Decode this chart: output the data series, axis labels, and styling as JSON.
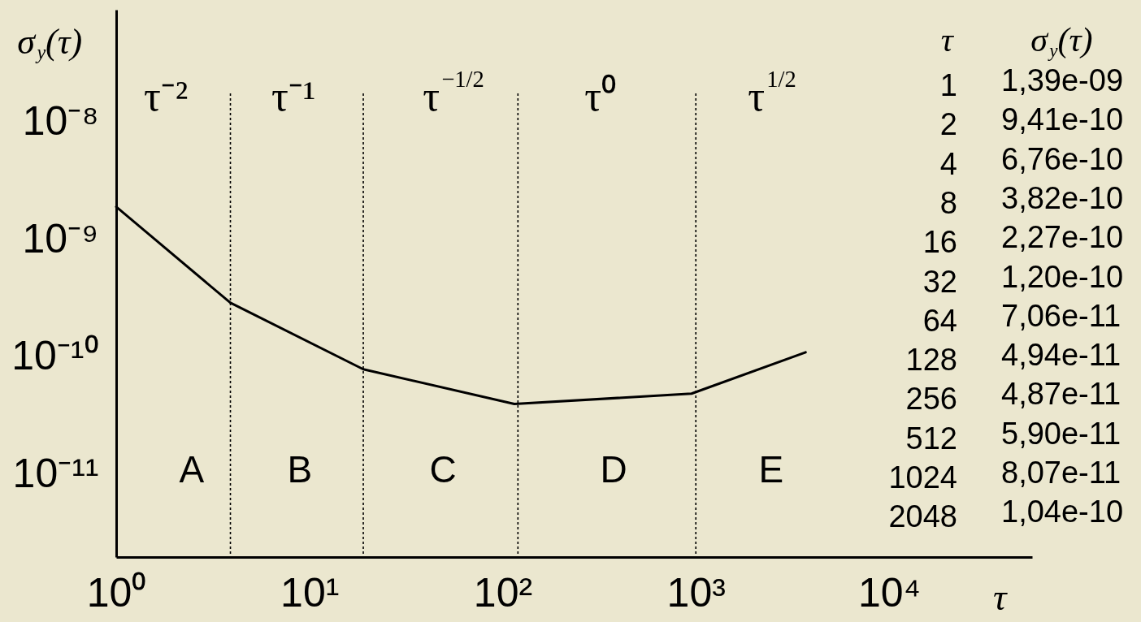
{
  "chart_data": [
    {
      "type": "line",
      "xlabel": "τ",
      "ylabel": "σ$_{y}$(τ)",
      "x": [
        1,
        3.9,
        19,
        115,
        950,
        3700
      ],
      "values": [
        1.9e-09,
        2.9e-10,
        7.9e-11,
        4e-11,
        4.9e-11,
        1.1e-10
      ],
      "color": "#000000",
      "log": "xy",
      "xlim": [
        1,
        55000
      ],
      "xticks": [
        {
          "value": 1,
          "label": "10⁰"
        },
        {
          "value": 10,
          "label": "10¹"
        },
        {
          "value": 100,
          "label": "10²"
        },
        {
          "value": 1000,
          "label": "10³"
        },
        {
          "value": 10000,
          "label": "10⁴"
        }
      ],
      "ylim": [
        2e-12,
        9e-08
      ],
      "yticks": [
        {
          "value": 1e-11,
          "label": "10⁻¹¹"
        },
        {
          "value": 1e-10,
          "label": "10⁻¹⁰"
        },
        {
          "value": 1e-09,
          "label": "10⁻⁹"
        },
        {
          "value": 1e-08,
          "label": "10⁻⁸"
        }
      ],
      "ref_lines": [
        {
          "axis": "x",
          "value": 3.9,
          "color": "#000000",
          "line_style": "dotted"
        },
        {
          "axis": "x",
          "value": 19,
          "color": "#000000",
          "line_style": "dotted"
        },
        {
          "axis": "x",
          "value": 120,
          "color": "#000000",
          "line_style": "dotted"
        },
        {
          "axis": "x",
          "value": 1000,
          "color": "#000000",
          "line_style": "dotted"
        }
      ],
      "annotations": [
        "τ⁻²",
        "τ⁻¹",
        "τ$^{−1/2}$",
        "τ⁰",
        "τ$^{1/2}$",
        "A",
        "B",
        "C",
        "D",
        "E"
      ]
    },
    {
      "type": "other",
      "xlabel": "τ",
      "ylabel": "σ$_{y}$(τ)",
      "categories": [
        "1",
        "2",
        "4",
        "8",
        "16",
        "32",
        "64",
        "128",
        "256",
        "512",
        "1024",
        "2048"
      ],
      "annotations": [
        "1,39e-09",
        "9,41e-10",
        "6,76e-10",
        "3,82e-10",
        "2,27e-10",
        "1,20e-10",
        "7,06e-11",
        "4,94e-11",
        "4,87e-11",
        "5,90e-11",
        "8,07e-11",
        "1,04e-10"
      ]
    }
  ]
}
